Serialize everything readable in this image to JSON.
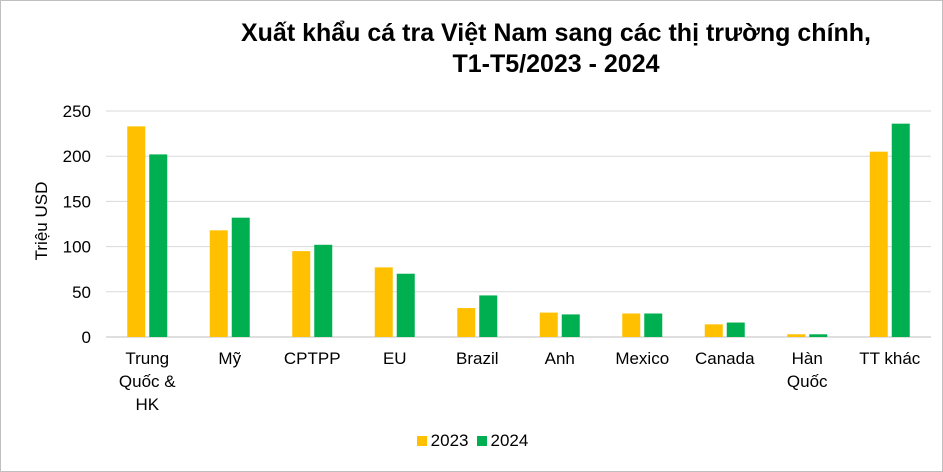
{
  "chart_data": {
    "type": "bar",
    "title_line1": "Xuất khẩu cá tra Việt Nam sang các thị trường chính,",
    "title_line2": "T1-T5/2023 - 2024",
    "ylabel": "Triệu USD",
    "ylim": [
      0,
      250
    ],
    "yticks": [
      "0",
      "50",
      "100",
      "150",
      "200",
      "250"
    ],
    "grid": true,
    "legend_position": "bottom",
    "categories": [
      [
        "Trung",
        "Quốc &",
        "HK"
      ],
      [
        "Mỹ"
      ],
      [
        "CPTPP"
      ],
      [
        "EU"
      ],
      [
        "Brazil"
      ],
      [
        "Anh"
      ],
      [
        "Mexico"
      ],
      [
        "Canada"
      ],
      [
        "Hàn",
        "Quốc"
      ],
      [
        "TT khác"
      ]
    ],
    "series": [
      {
        "name": "2023",
        "color": "#ffc000",
        "values": [
          233,
          118,
          95,
          77,
          32,
          27,
          26,
          14,
          3,
          205
        ]
      },
      {
        "name": "2024",
        "color": "#00b050",
        "values": [
          202,
          132,
          102,
          70,
          46,
          25,
          26,
          16,
          3,
          236
        ]
      }
    ]
  }
}
